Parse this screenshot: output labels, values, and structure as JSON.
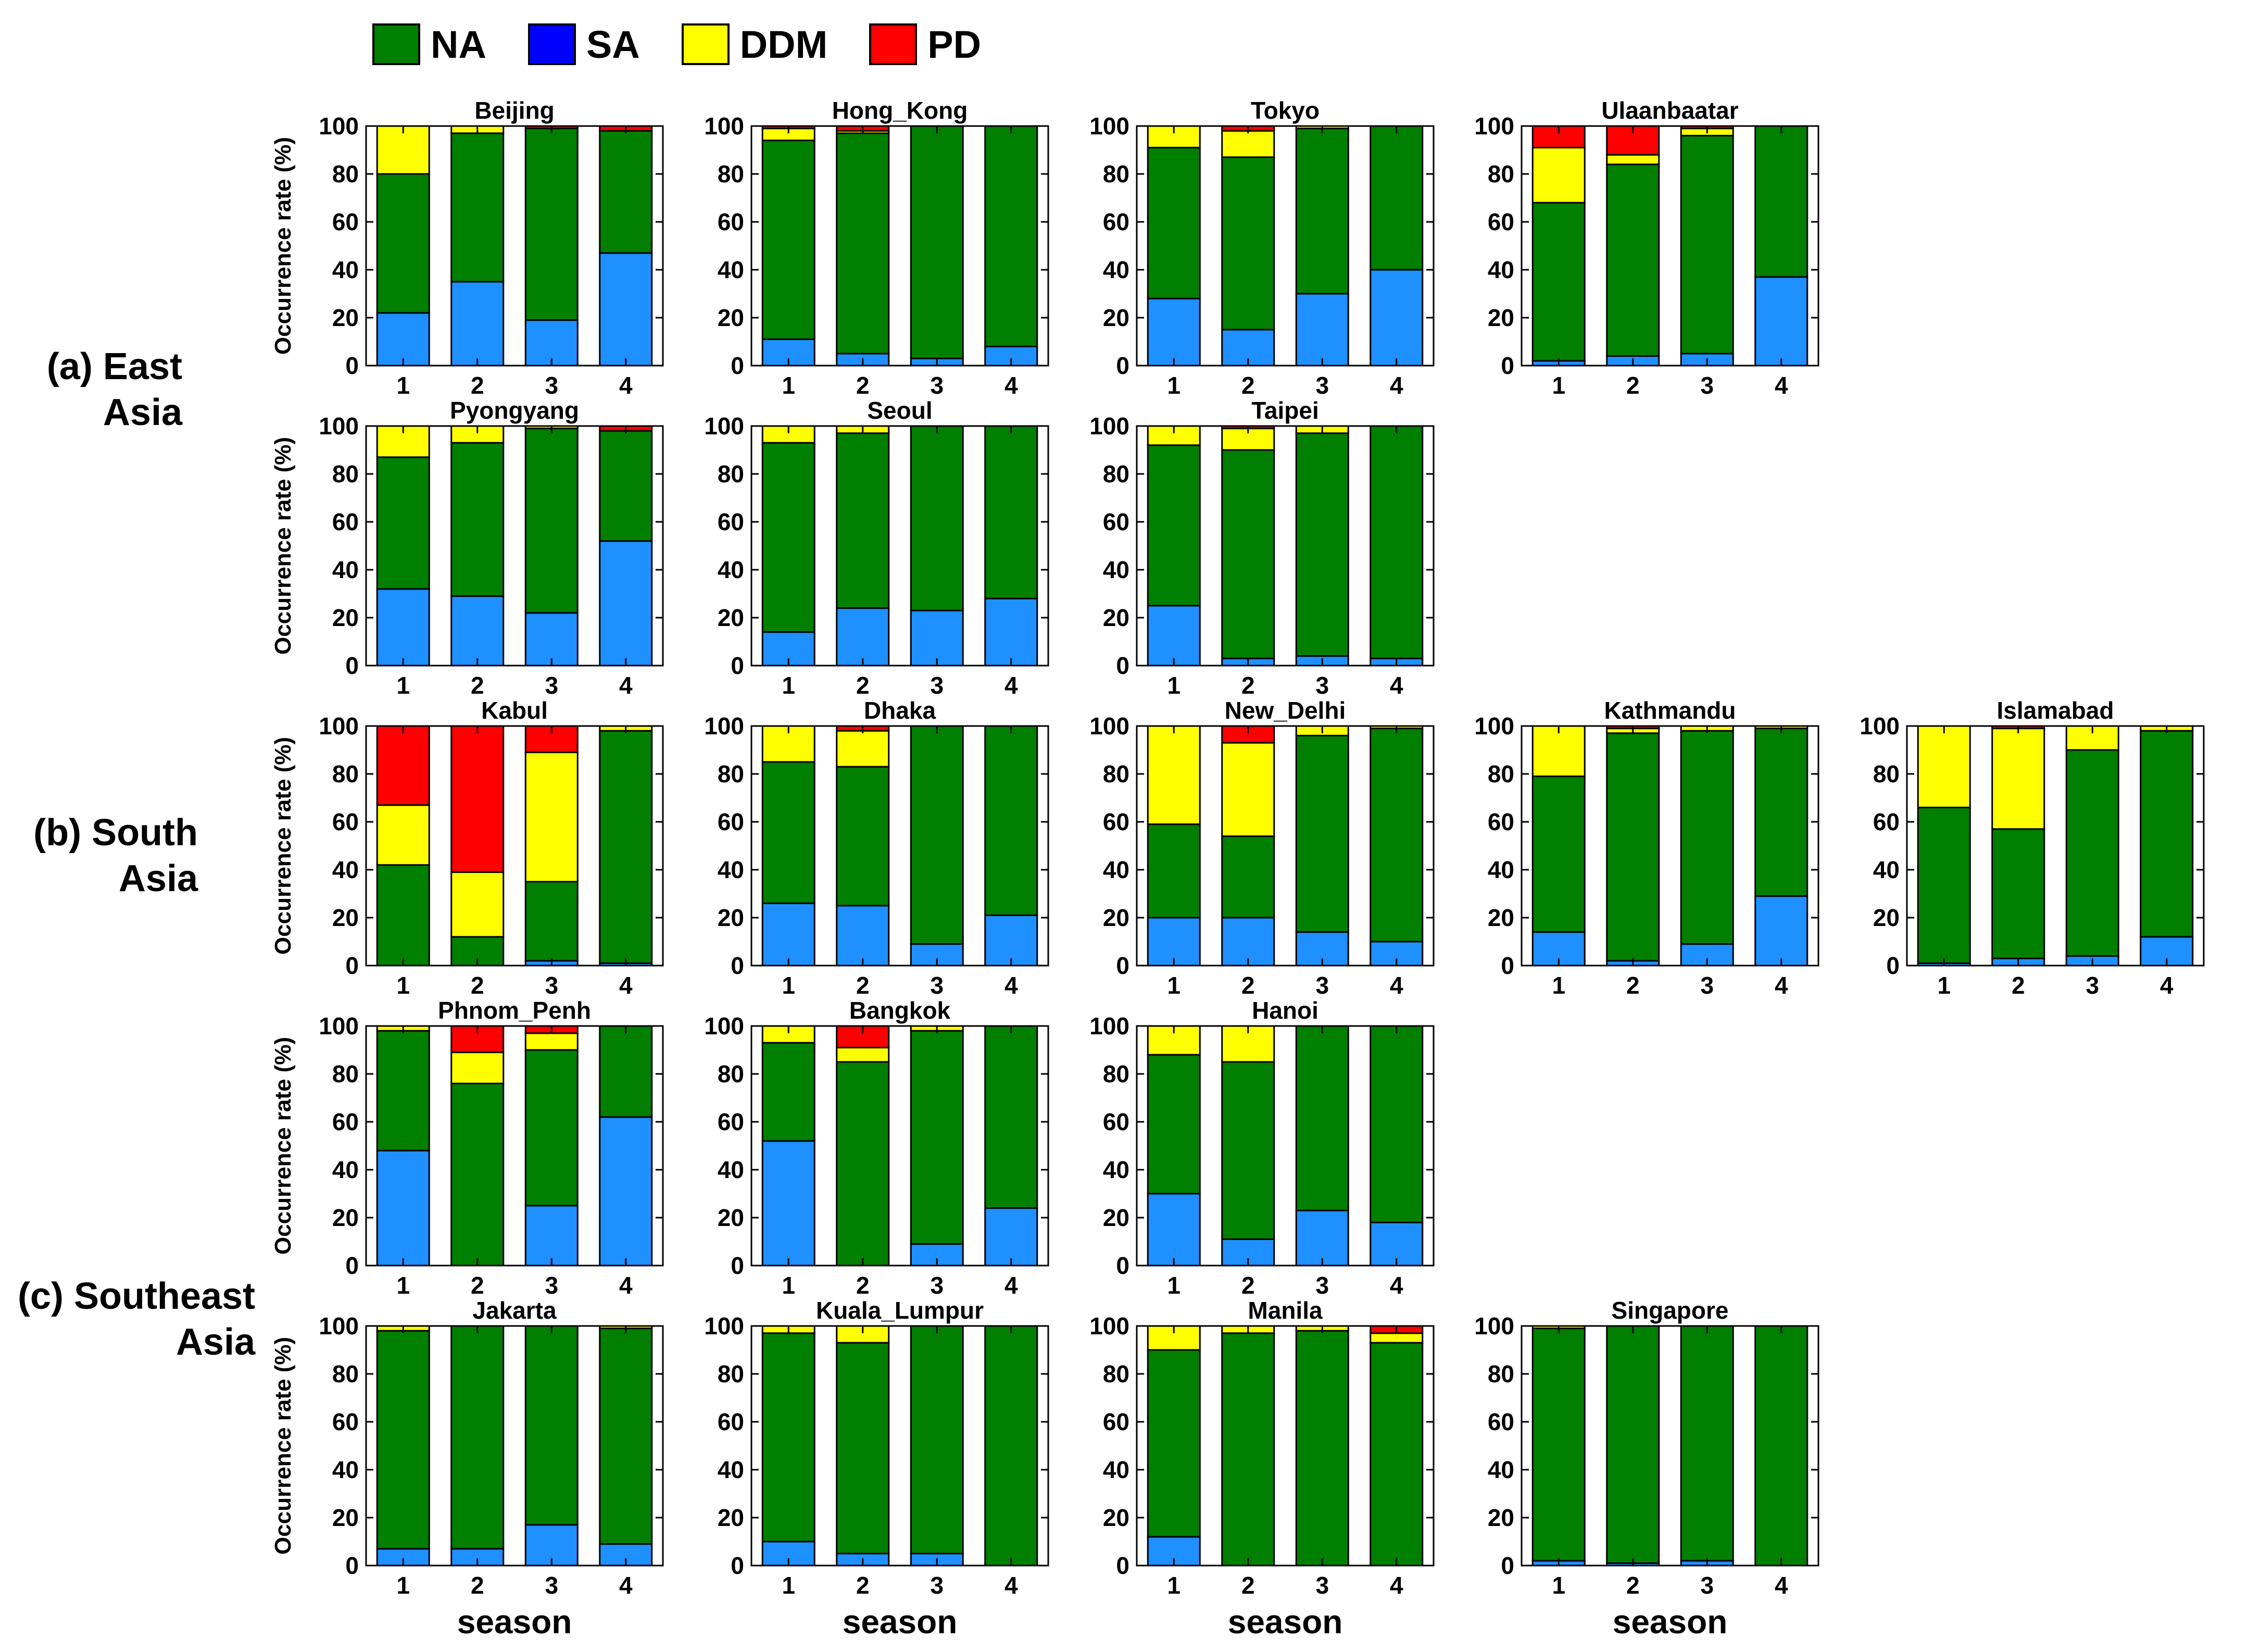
{
  "legend": {
    "items": [
      {
        "key": "NA",
        "label": "NA",
        "color": "#007F00"
      },
      {
        "key": "SA",
        "label": "SA",
        "color": "#0000FF"
      },
      {
        "key": "DDM",
        "label": "DDM",
        "color": "#FFFF00"
      },
      {
        "key": "PD",
        "label": "PD",
        "color": "#FF0000"
      }
    ]
  },
  "regions": [
    {
      "line1": "(a) East",
      "line2": "Asia"
    },
    {
      "line1": "(b) South",
      "line2": "Asia"
    },
    {
      "line1": "(c) Southeast",
      "line2": "Asia"
    }
  ],
  "colors": {
    "NA": "#007F00",
    "SA": "#1E90FF",
    "DDM": "#FFFF00",
    "PD": "#FF0000"
  },
  "chart_data": {
    "type": "bar",
    "stacked": true,
    "ylabel": "Occurrence rate (%)",
    "xlabel": "season",
    "categories": [
      "1",
      "2",
      "3",
      "4"
    ],
    "ylim": [
      0,
      100
    ],
    "yticks": [
      0,
      20,
      40,
      60,
      80,
      100
    ],
    "stack_order": [
      "SA",
      "NA",
      "DDM",
      "PD"
    ],
    "panels": [
      {
        "title": "Beijing",
        "SA": [
          22,
          35,
          19,
          47
        ],
        "NA": [
          58,
          62,
          80,
          51
        ],
        "DDM": [
          20,
          3,
          0,
          0
        ],
        "PD": [
          0,
          0,
          1,
          2
        ]
      },
      {
        "title": "Hong_Kong",
        "SA": [
          11,
          5,
          3,
          8
        ],
        "NA": [
          83,
          92,
          97,
          92
        ],
        "DDM": [
          5,
          1,
          0,
          0
        ],
        "PD": [
          1,
          2,
          0,
          0
        ]
      },
      {
        "title": "Tokyo",
        "SA": [
          28,
          15,
          30,
          40
        ],
        "NA": [
          63,
          72,
          69,
          60
        ],
        "DDM": [
          9,
          11,
          1,
          0
        ],
        "PD": [
          0,
          2,
          0,
          0
        ]
      },
      {
        "title": "Ulaanbaatar",
        "SA": [
          2,
          4,
          5,
          37
        ],
        "NA": [
          66,
          80,
          91,
          63
        ],
        "DDM": [
          23,
          4,
          3,
          0
        ],
        "PD": [
          9,
          12,
          1,
          0
        ]
      },
      {
        "title": "Pyongyang",
        "SA": [
          32,
          29,
          22,
          52
        ],
        "NA": [
          55,
          64,
          77,
          46
        ],
        "DDM": [
          13,
          7,
          1,
          0
        ],
        "PD": [
          0,
          0,
          0,
          2
        ]
      },
      {
        "title": "Seoul",
        "SA": [
          14,
          24,
          23,
          28
        ],
        "NA": [
          79,
          73,
          77,
          72
        ],
        "DDM": [
          7,
          3,
          0,
          0
        ],
        "PD": [
          0,
          0,
          0,
          0
        ]
      },
      {
        "title": "Taipei",
        "SA": [
          25,
          3,
          4,
          3
        ],
        "NA": [
          67,
          87,
          93,
          97
        ],
        "DDM": [
          8,
          9,
          3,
          0
        ],
        "PD": [
          0,
          1,
          0,
          0
        ]
      },
      {
        "title": "Kabul",
        "SA": [
          0,
          0,
          2,
          1
        ],
        "NA": [
          42,
          12,
          33,
          97
        ],
        "DDM": [
          25,
          27,
          54,
          2
        ],
        "PD": [
          33,
          61,
          11,
          0
        ]
      },
      {
        "title": "Dhaka",
        "SA": [
          26,
          25,
          9,
          21
        ],
        "NA": [
          59,
          58,
          91,
          79
        ],
        "DDM": [
          15,
          15,
          0,
          0
        ],
        "PD": [
          0,
          2,
          0,
          0
        ]
      },
      {
        "title": "New_Delhi",
        "SA": [
          20,
          20,
          14,
          10
        ],
        "NA": [
          39,
          34,
          82,
          89
        ],
        "DDM": [
          41,
          39,
          4,
          1
        ],
        "PD": [
          0,
          7,
          0,
          0
        ]
      },
      {
        "title": "Kathmandu",
        "SA": [
          14,
          2,
          9,
          29
        ],
        "NA": [
          65,
          95,
          89,
          70
        ],
        "DDM": [
          21,
          2,
          2,
          1
        ],
        "PD": [
          0,
          1,
          0,
          0
        ]
      },
      {
        "title": "Islamabad",
        "SA": [
          1,
          3,
          4,
          12
        ],
        "NA": [
          65,
          54,
          86,
          86
        ],
        "DDM": [
          34,
          42,
          10,
          2
        ],
        "PD": [
          0,
          1,
          0,
          0
        ]
      },
      {
        "title": "Phnom_Penh",
        "SA": [
          48,
          0,
          25,
          62
        ],
        "NA": [
          50,
          76,
          65,
          38
        ],
        "DDM": [
          2,
          13,
          7,
          0
        ],
        "PD": [
          0,
          11,
          3,
          0
        ]
      },
      {
        "title": "Bangkok",
        "SA": [
          52,
          0,
          9,
          24
        ],
        "NA": [
          41,
          85,
          89,
          76
        ],
        "DDM": [
          7,
          6,
          2,
          0
        ],
        "PD": [
          0,
          9,
          0,
          0
        ]
      },
      {
        "title": "Hanoi",
        "SA": [
          30,
          11,
          23,
          18
        ],
        "NA": [
          58,
          74,
          77,
          82
        ],
        "DDM": [
          12,
          15,
          0,
          0
        ],
        "PD": [
          0,
          0,
          0,
          0
        ]
      },
      {
        "title": "Jakarta",
        "SA": [
          7,
          7,
          17,
          9
        ],
        "NA": [
          91,
          93,
          83,
          90
        ],
        "DDM": [
          2,
          0,
          0,
          1
        ],
        "PD": [
          0,
          0,
          0,
          0
        ]
      },
      {
        "title": "Kuala_Lumpur",
        "SA": [
          10,
          5,
          5,
          0
        ],
        "NA": [
          87,
          88,
          95,
          100
        ],
        "DDM": [
          3,
          7,
          0,
          0
        ],
        "PD": [
          0,
          0,
          0,
          0
        ]
      },
      {
        "title": "Manila",
        "SA": [
          12,
          0,
          0,
          0
        ],
        "NA": [
          78,
          97,
          98,
          93
        ],
        "DDM": [
          10,
          3,
          2,
          4
        ],
        "PD": [
          0,
          0,
          0,
          3
        ]
      },
      {
        "title": "Singapore",
        "SA": [
          2,
          1,
          2,
          0
        ],
        "NA": [
          97,
          99,
          98,
          100
        ],
        "DDM": [
          1,
          0,
          0,
          0
        ],
        "PD": [
          0,
          0,
          0,
          0
        ]
      }
    ]
  }
}
